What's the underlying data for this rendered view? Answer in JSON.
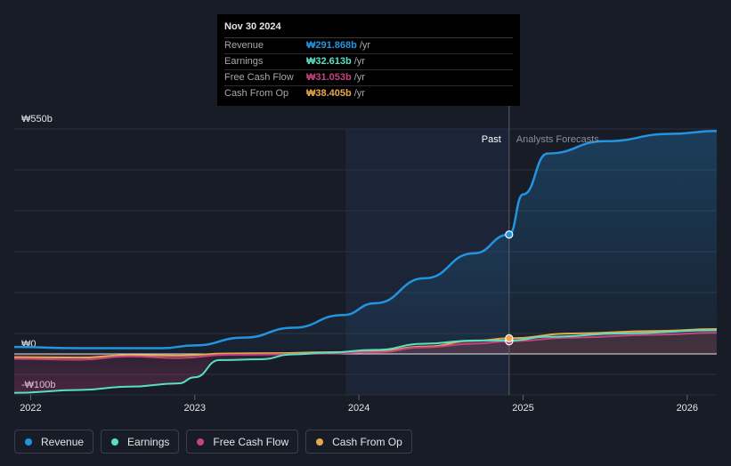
{
  "tooltip": {
    "date": "Nov 30 2024",
    "rows": [
      {
        "label": "Revenue",
        "value": "₩291.868b",
        "unit": "/yr",
        "color": "#2394df"
      },
      {
        "label": "Earnings",
        "value": "₩32.613b",
        "unit": "/yr",
        "color": "#58e1c1"
      },
      {
        "label": "Free Cash Flow",
        "value": "₩31.053b",
        "unit": "/yr",
        "color": "#c3447f"
      },
      {
        "label": "Cash From Op",
        "value": "₩38.405b",
        "unit": "/yr",
        "color": "#e7a84e"
      }
    ]
  },
  "chart_data": {
    "type": "line",
    "y_tick_labels": [
      "₩550b",
      "₩0",
      "-₩100b"
    ],
    "ylim": [
      -100,
      550
    ],
    "xlim": [
      2021.9,
      2026.18
    ],
    "x_ticks": [
      2022,
      2023,
      2024,
      2025,
      2026
    ],
    "x_tick_labels": [
      "2022",
      "2023",
      "2024",
      "2025",
      "2026"
    ],
    "past_label": "Past",
    "forecast_label": "Analysts Forecasts",
    "past_end_x": 2024.915,
    "shaded_start_x": 2023.92,
    "grid": true,
    "series": [
      {
        "name": "Revenue",
        "color": "#2394df",
        "x": [
          2021.9,
          2022.3,
          2022.8,
          2023.0,
          2023.3,
          2023.6,
          2023.9,
          2024.1,
          2024.4,
          2024.7,
          2024.915,
          2025.0,
          2025.15,
          2025.5,
          2025.9,
          2026.18
        ],
        "y": [
          17,
          14,
          14,
          21,
          40,
          64,
          95,
          124,
          185,
          246,
          291.868,
          390,
          490,
          520,
          538,
          545
        ]
      },
      {
        "name": "Earnings",
        "color": "#58e1c1",
        "x": [
          2021.9,
          2022.3,
          2022.6,
          2022.9,
          2023.0,
          2023.15,
          2023.4,
          2023.6,
          2023.8,
          2024.1,
          2024.4,
          2024.7,
          2024.915,
          2025.15,
          2025.6,
          2026.18
        ],
        "y": [
          -95,
          -88,
          -80,
          -72,
          -57,
          -15,
          -13,
          -1,
          3,
          10,
          25,
          33,
          32.613,
          42,
          50,
          58
        ]
      },
      {
        "name": "Free Cash Flow",
        "color": "#c3447f",
        "x": [
          2021.9,
          2022.3,
          2022.6,
          2022.9,
          2023.2,
          2023.5,
          2023.8,
          2024.1,
          2024.4,
          2024.7,
          2024.915,
          2025.3,
          2025.8,
          2026.18
        ],
        "y": [
          -12,
          -14,
          -6,
          -10,
          -2,
          -1,
          1,
          4,
          16,
          25,
          31.053,
          40,
          47,
          52
        ]
      },
      {
        "name": "Cash From Op",
        "color": "#e7a84e",
        "x": [
          2021.9,
          2022.3,
          2022.6,
          2022.9,
          2023.2,
          2023.5,
          2023.8,
          2024.1,
          2024.4,
          2024.7,
          2024.915,
          2025.3,
          2025.8,
          2026.18
        ],
        "y": [
          -8,
          -9,
          -3,
          -4,
          1,
          2,
          4,
          7,
          18,
          32,
          38.405,
          50,
          56,
          61
        ]
      }
    ]
  }
}
